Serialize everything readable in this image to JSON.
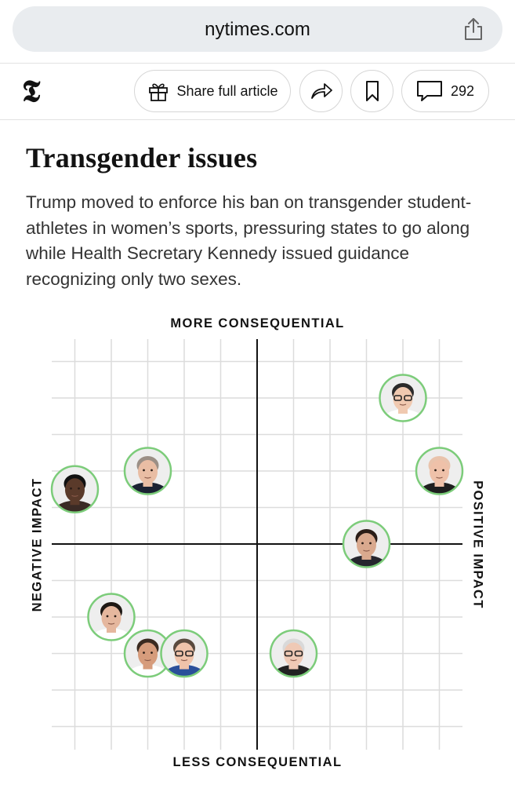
{
  "browser": {
    "url": "nytimes.com"
  },
  "toolbar": {
    "logo": "𝕿",
    "share_label": "Share full article",
    "comment_count": "292"
  },
  "article": {
    "headline": "Transgender issues",
    "summary": "Trump moved to enforce his ban on transgender student-athletes in women’s sports, pressuring states to go along while Health Secretary Kennedy issued guidance recognizing only two sexes."
  },
  "chart_data": {
    "type": "scatter",
    "top_label": "MORE CONSEQUENTIAL",
    "bottom_label": "LESS CONSEQUENTIAL",
    "left_label": "NEGATIVE IMPACT",
    "right_label": "POSITIVE IMPACT",
    "xlim": [
      -5.5,
      5.5
    ],
    "ylim": [
      -5.5,
      5.5
    ],
    "grid": true,
    "ring_color": "#7ccc7a",
    "points": [
      {
        "x": 4.0,
        "y": 4.0,
        "skin": "#f0c9b0",
        "hair": "#2b2a2a",
        "shirt": "#ffffff",
        "glasses": true
      },
      {
        "x": 5.0,
        "y": 2.0,
        "skin": "#efc1a9",
        "hair": "#e9c3ac",
        "shirt": "#1f1f1f",
        "glasses": false
      },
      {
        "x": -3.0,
        "y": 2.0,
        "skin": "#e9bda4",
        "hair": "#9b8f86",
        "shirt": "#1b2233",
        "glasses": false
      },
      {
        "x": -5.0,
        "y": 1.5,
        "skin": "#5a3a2a",
        "hair": "#111111",
        "shirt": "#3a2a25",
        "glasses": false
      },
      {
        "x": 3.0,
        "y": 0.0,
        "skin": "#d9a98e",
        "hair": "#2a1d17",
        "shirt": "#26262e",
        "glasses": false
      },
      {
        "x": -4.0,
        "y": -2.0,
        "skin": "#e5b79e",
        "hair": "#1e1814",
        "shirt": "#ffffff",
        "glasses": false
      },
      {
        "x": -3.0,
        "y": -3.0,
        "skin": "#d69c7c",
        "hair": "#3a2a20",
        "shirt": "#ffffff",
        "glasses": false
      },
      {
        "x": -2.0,
        "y": -3.0,
        "skin": "#efc3aa",
        "hair": "#5a4a3e",
        "shirt": "#2a4f9a",
        "glasses": true
      },
      {
        "x": 1.0,
        "y": -3.0,
        "skin": "#efc9b5",
        "hair": "#d9d9d9",
        "shirt": "#222222",
        "glasses": true
      }
    ]
  }
}
